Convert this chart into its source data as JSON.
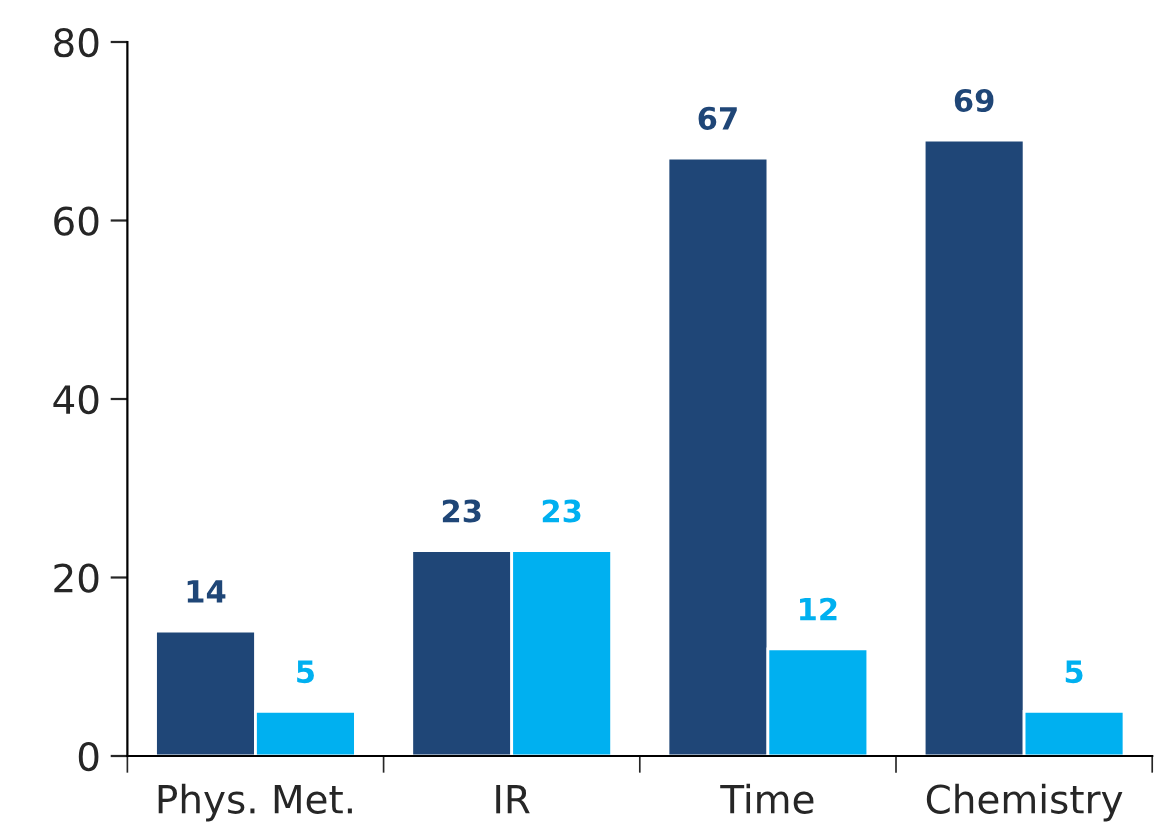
{
  "chart_data": {
    "type": "bar",
    "categories": [
      "Phys. Met.",
      "IR",
      "Time",
      "Chemistry"
    ],
    "series": [
      {
        "color": "#1f4677",
        "values": [
          14,
          23,
          67,
          69
        ]
      },
      {
        "color": "#00b0f0",
        "values": [
          5,
          23,
          12,
          5
        ]
      }
    ],
    "ylim": [
      0,
      80
    ],
    "yticks": [
      0,
      20,
      40,
      60,
      80
    ],
    "data_labels": true,
    "grid": false
  }
}
